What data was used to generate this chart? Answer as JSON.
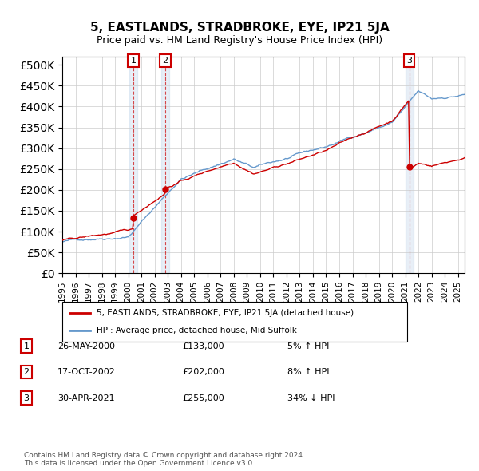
{
  "title": "5, EASTLANDS, STRADBROKE, EYE, IP21 5JA",
  "subtitle": "Price paid vs. HM Land Registry's House Price Index (HPI)",
  "legend_line1": "5, EASTLANDS, STRADBROKE, EYE, IP21 5JA (detached house)",
  "legend_line2": "HPI: Average price, detached house, Mid Suffolk",
  "footer1": "Contains HM Land Registry data © Crown copyright and database right 2024.",
  "footer2": "This data is licensed under the Open Government Licence v3.0.",
  "transactions": [
    {
      "num": 1,
      "date": "26-MAY-2000",
      "price": 133000,
      "year": 2000.4,
      "pct": "5%",
      "dir": "↑"
    },
    {
      "num": 2,
      "date": "17-OCT-2002",
      "price": 202000,
      "year": 2002.8,
      "pct": "8%",
      "dir": "↑"
    },
    {
      "num": 3,
      "date": "30-APR-2021",
      "price": 255000,
      "year": 2021.3,
      "pct": "34%",
      "dir": "↓"
    }
  ],
  "hpi_color": "#6699cc",
  "price_color": "#cc0000",
  "highlight_color": "#ddeeff",
  "vline_color": "#cc0000",
  "ylim": [
    0,
    520000
  ],
  "yticks": [
    0,
    50000,
    100000,
    150000,
    200000,
    250000,
    300000,
    350000,
    400000,
    450000,
    500000
  ],
  "background": "#ffffff",
  "grid_color": "#cccccc"
}
